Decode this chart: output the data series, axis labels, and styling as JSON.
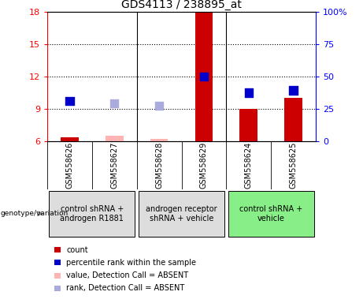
{
  "title": "GDS4113 / 238895_at",
  "samples": [
    "GSM558626",
    "GSM558627",
    "GSM558628",
    "GSM558629",
    "GSM558624",
    "GSM558625"
  ],
  "bar_values": [
    6.35,
    6.5,
    6.2,
    18.0,
    9.0,
    10.0
  ],
  "bar_colors": [
    "#cc0000",
    "#ffb3b3",
    "#ffb3b3",
    "#cc0000",
    "#cc0000",
    "#cc0000"
  ],
  "dot_values": [
    9.7,
    9.5,
    9.3,
    12.0,
    10.5,
    10.7
  ],
  "dot_colors": [
    "#0000cc",
    "#aaaadd",
    "#aaaadd",
    "#0000cc",
    "#0000cc",
    "#0000cc"
  ],
  "ylim_left": [
    6,
    18
  ],
  "ylim_right": [
    0,
    100
  ],
  "yticks_left": [
    6,
    9,
    12,
    15,
    18
  ],
  "yticks_right": [
    0,
    25,
    50,
    75,
    100
  ],
  "ytick_labels_left": [
    "6",
    "9",
    "12",
    "15",
    "18"
  ],
  "ytick_labels_right": [
    "0",
    "25",
    "50",
    "75",
    "100%"
  ],
  "groups": [
    {
      "label": "control shRNA +\nandrogen R1881",
      "samples": [
        0,
        1
      ],
      "color": "#dddddd"
    },
    {
      "label": "androgen receptor\nshRNA + vehicle",
      "samples": [
        2,
        3
      ],
      "color": "#dddddd"
    },
    {
      "label": "control shRNA +\nvehicle",
      "samples": [
        4,
        5
      ],
      "color": "#88ee88"
    }
  ],
  "genotype_label": "genotype/variation",
  "legend_items": [
    {
      "label": "count",
      "color": "#cc0000"
    },
    {
      "label": "percentile rank within the sample",
      "color": "#0000cc"
    },
    {
      "label": "value, Detection Call = ABSENT",
      "color": "#ffb3b3"
    },
    {
      "label": "rank, Detection Call = ABSENT",
      "color": "#aaaadd"
    }
  ],
  "bar_width": 0.4,
  "dot_size": 55,
  "background_color": "#ffffff",
  "sample_area_color": "#cccccc",
  "group_border_color": "#888888"
}
